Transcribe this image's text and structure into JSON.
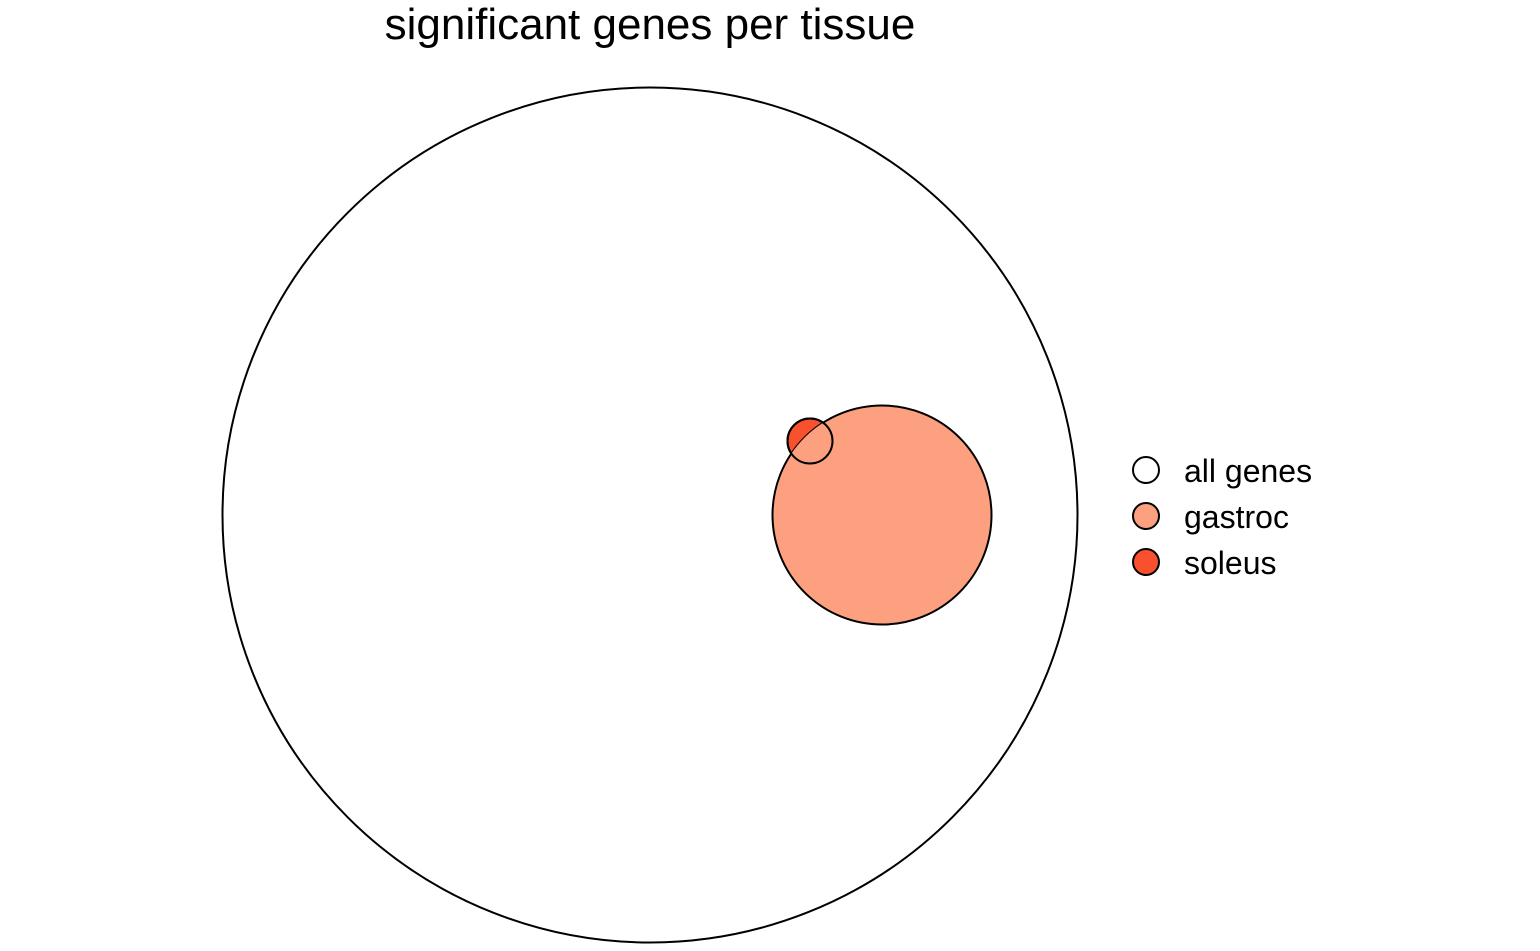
{
  "title": "significant genes per tissue",
  "sets": [
    {
      "key": "all",
      "label": "all genes",
      "color": "#ffffff"
    },
    {
      "key": "gastroc",
      "label": "gastroc",
      "color": "#fca07f"
    },
    {
      "key": "soleus",
      "label": "soleus",
      "color": "#f9502e"
    }
  ]
}
